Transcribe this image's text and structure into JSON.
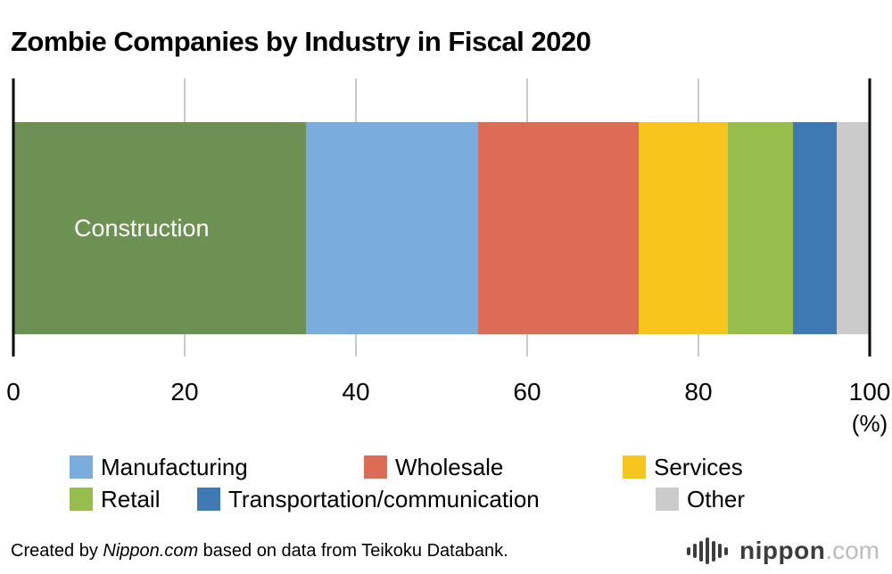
{
  "title": "Zombie Companies by Industry in Fiscal 2020",
  "chart_data": {
    "type": "bar",
    "orientation": "horizontal",
    "stacked": true,
    "title": "Zombie Companies by Industry in Fiscal 2020",
    "xlim": [
      0,
      100
    ],
    "x_ticks": [
      0,
      20,
      40,
      60,
      80,
      100
    ],
    "x_unit": "(%)",
    "grid": true,
    "legend_position": "bottom",
    "segments": [
      {
        "label": "Construction",
        "value": 34.2,
        "color": "#6D9152",
        "label_inside": true
      },
      {
        "label": "Manufacturing",
        "value": 20.1,
        "color": "#7AACDE",
        "label_inside": false
      },
      {
        "label": "Wholesale",
        "value": 18.7,
        "color": "#DC6C55",
        "label_inside": false
      },
      {
        "label": "Services",
        "value": 10.4,
        "color": "#F8C51D",
        "label_inside": false
      },
      {
        "label": "Retail",
        "value": 7.6,
        "color": "#97BD4C",
        "label_inside": false
      },
      {
        "label": "Transportation/communication",
        "value": 5.1,
        "color": "#3E79B4",
        "label_inside": false
      },
      {
        "label": "Other",
        "value": 3.9,
        "color": "#CBCBCB",
        "label_inside": false
      }
    ]
  },
  "legend": {
    "rows": [
      [
        {
          "label": "Manufacturing"
        },
        {
          "label": "Wholesale"
        },
        {
          "label": "Services"
        }
      ],
      [
        {
          "label": "Retail"
        },
        {
          "label": "Transportation/communication"
        },
        {
          "label": "Other"
        }
      ]
    ]
  },
  "footer": {
    "credit_prefix": "Created by ",
    "credit_source_italic": "Nippon.com",
    "credit_suffix": " based on data from Teikoku Databank.",
    "logo": {
      "name": "nippon",
      "tld": ".com"
    }
  }
}
